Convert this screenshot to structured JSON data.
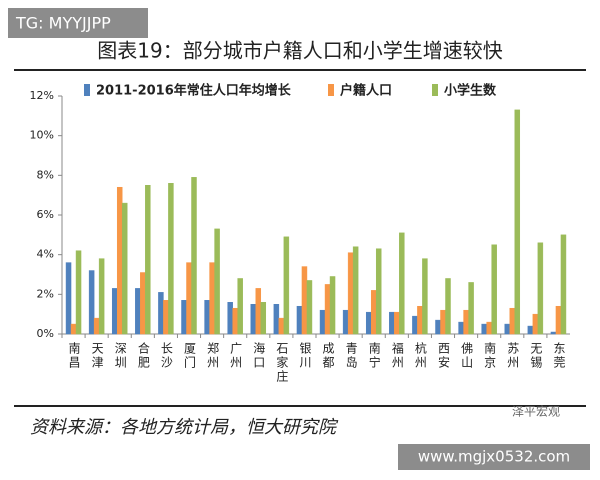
{
  "badge": "TG: MYYJJPP",
  "heading": "图表19：部分城市户籍人口和小学生增速较快",
  "source": "资料来源：各地方统计局，恒大研究院",
  "watermark": "泽平宏观",
  "site": "www.mgjx0532.com",
  "chart_data": {
    "type": "bar",
    "categories": [
      "南昌",
      "天津",
      "深圳",
      "合肥",
      "长沙",
      "厦门",
      "郑州",
      "广州",
      "海口",
      "石家庄",
      "银川",
      "成都",
      "青岛",
      "南宁",
      "福州",
      "杭州",
      "西安",
      "佛山",
      "南京",
      "苏州",
      "无锡",
      "东莞"
    ],
    "series": [
      {
        "name": "2011-2016年常住人口年均增长",
        "color": "#4f81bd",
        "values": [
          3.6,
          3.2,
          2.3,
          2.3,
          2.1,
          1.7,
          1.7,
          1.6,
          1.5,
          1.5,
          1.4,
          1.2,
          1.2,
          1.1,
          1.1,
          0.9,
          0.7,
          0.6,
          0.5,
          0.5,
          0.4,
          0.1
        ]
      },
      {
        "name": "户籍人口",
        "color": "#f79646",
        "values": [
          0.5,
          0.8,
          7.4,
          3.1,
          1.7,
          3.6,
          3.6,
          1.3,
          2.3,
          0.8,
          3.4,
          2.5,
          4.1,
          2.2,
          1.1,
          1.4,
          1.2,
          1.2,
          0.6,
          1.3,
          1.0,
          1.4
        ]
      },
      {
        "name": "小学生数",
        "color": "#9bbb59",
        "values": [
          4.2,
          3.8,
          6.6,
          7.5,
          7.6,
          7.9,
          5.3,
          2.8,
          1.6,
          4.9,
          2.7,
          2.9,
          4.4,
          4.3,
          5.1,
          3.8,
          2.8,
          2.6,
          4.5,
          11.3,
          4.6,
          5.0
        ]
      }
    ],
    "ylim": [
      0,
      12
    ],
    "yticks": [
      {
        "value": 0,
        "label": "0%"
      },
      {
        "value": 2,
        "label": "2%"
      },
      {
        "value": 4,
        "label": "4%"
      },
      {
        "value": 6,
        "label": "6%"
      },
      {
        "value": 8,
        "label": "8%"
      },
      {
        "value": 10,
        "label": "10%"
      },
      {
        "value": 12,
        "label": "12%"
      }
    ]
  }
}
